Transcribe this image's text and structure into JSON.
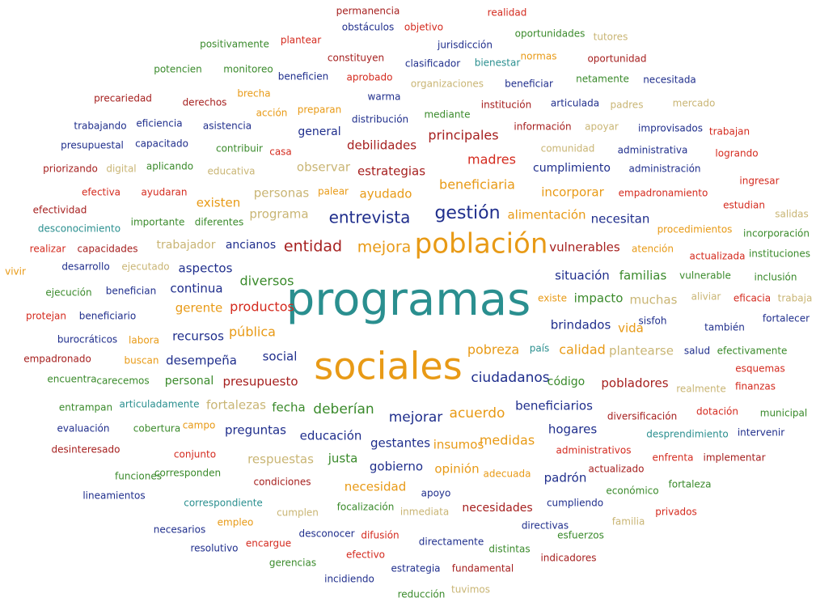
{
  "words": [
    {
      "text": "permanencia",
      "color": "#a6201f"
    },
    {
      "text": "realidad",
      "color": "#d42a1e"
    },
    {
      "text": "obstáculos",
      "color": "#1f2e8c"
    },
    {
      "text": "objetivo",
      "color": "#d42a1e"
    },
    {
      "text": "oportunidades",
      "color": "#3a8a2b"
    },
    {
      "text": "tutores",
      "color": "#c9b574"
    },
    {
      "text": "positivamente",
      "color": "#3a8a2b"
    },
    {
      "text": "plantear",
      "color": "#d42a1e"
    },
    {
      "text": "jurisdicción",
      "color": "#1f2e8c"
    },
    {
      "text": "constituyen",
      "color": "#a6201f"
    },
    {
      "text": "clasificador",
      "color": "#1f2e8c"
    },
    {
      "text": "bienestar",
      "color": "#2a8f8f"
    },
    {
      "text": "normas",
      "color": "#e89a16"
    },
    {
      "text": "oportunidad",
      "color": "#a6201f"
    },
    {
      "text": "potencien",
      "color": "#3a8a2b"
    },
    {
      "text": "monitoreo",
      "color": "#3a8a2b"
    },
    {
      "text": "beneficien",
      "color": "#1f2e8c"
    },
    {
      "text": "aprobado",
      "color": "#d42a1e"
    },
    {
      "text": "organizaciones",
      "color": "#c9b574"
    },
    {
      "text": "beneficiar",
      "color": "#1f2e8c"
    },
    {
      "text": "netamente",
      "color": "#3a8a2b"
    },
    {
      "text": "necesitada",
      "color": "#1f2e8c"
    },
    {
      "text": "brecha",
      "color": "#e89a16"
    },
    {
      "text": "warma",
      "color": "#1f2e8c"
    },
    {
      "text": "precariedad",
      "color": "#a6201f"
    },
    {
      "text": "derechos",
      "color": "#a6201f"
    },
    {
      "text": "padres",
      "color": "#c9b574"
    },
    {
      "text": "mercado",
      "color": "#c9b574"
    },
    {
      "text": "articulada",
      "color": "#1f2e8c"
    },
    {
      "text": "institución",
      "color": "#a6201f"
    },
    {
      "text": "acción",
      "color": "#e89a16"
    },
    {
      "text": "preparan",
      "color": "#e89a16"
    },
    {
      "text": "mediante",
      "color": "#3a8a2b"
    },
    {
      "text": "distribución",
      "color": "#1f2e8c"
    },
    {
      "text": "trabajando",
      "color": "#1f2e8c"
    },
    {
      "text": "eficiencia",
      "color": "#1f2e8c"
    },
    {
      "text": "asistencia",
      "color": "#1f2e8c"
    },
    {
      "text": "información",
      "color": "#a6201f"
    },
    {
      "text": "apoyar",
      "color": "#c9b574"
    },
    {
      "text": "improvisados",
      "color": "#1f2e8c"
    },
    {
      "text": "trabajan",
      "color": "#d42a1e"
    },
    {
      "text": "general",
      "color": "#1f2e8c"
    },
    {
      "text": "principales",
      "color": "#a6201f"
    },
    {
      "text": "presupuestal",
      "color": "#1f2e8c"
    },
    {
      "text": "capacitado",
      "color": "#1f2e8c"
    },
    {
      "text": "debilidades",
      "color": "#a6201f"
    },
    {
      "text": "contribuir",
      "color": "#3a8a2b"
    },
    {
      "text": "casa",
      "color": "#d42a1e"
    },
    {
      "text": "comunidad",
      "color": "#c9b574"
    },
    {
      "text": "administrativa",
      "color": "#1f2e8c"
    },
    {
      "text": "logrando",
      "color": "#d42a1e"
    },
    {
      "text": "madres",
      "color": "#d42a1e"
    },
    {
      "text": "priorizando",
      "color": "#a6201f"
    },
    {
      "text": "digital",
      "color": "#c9b574"
    },
    {
      "text": "aplicando",
      "color": "#3a8a2b"
    },
    {
      "text": "educativa",
      "color": "#c9b574"
    },
    {
      "text": "observar",
      "color": "#c9b574"
    },
    {
      "text": "estrategias",
      "color": "#a6201f"
    },
    {
      "text": "cumplimiento",
      "color": "#1f2e8c"
    },
    {
      "text": "administración",
      "color": "#1f2e8c"
    },
    {
      "text": "ingresar",
      "color": "#d42a1e"
    },
    {
      "text": "beneficiaria",
      "color": "#e89a16"
    },
    {
      "text": "efectiva",
      "color": "#d42a1e"
    },
    {
      "text": "ayudaran",
      "color": "#d42a1e"
    },
    {
      "text": "personas",
      "color": "#c9b574"
    },
    {
      "text": "palear",
      "color": "#e89a16"
    },
    {
      "text": "ayudado",
      "color": "#e89a16"
    },
    {
      "text": "incorporar",
      "color": "#e89a16"
    },
    {
      "text": "empadronamiento",
      "color": "#d42a1e"
    },
    {
      "text": "existen",
      "color": "#e89a16"
    },
    {
      "text": "estudian",
      "color": "#d42a1e"
    },
    {
      "text": "efectividad",
      "color": "#a6201f"
    },
    {
      "text": "programa",
      "color": "#c9b574"
    },
    {
      "text": "gestión",
      "color": "#1f2e8c"
    },
    {
      "text": "alimentación",
      "color": "#e89a16"
    },
    {
      "text": "necesitan",
      "color": "#1f2e8c"
    },
    {
      "text": "salidas",
      "color": "#c9b574"
    },
    {
      "text": "entrevista",
      "color": "#1f2e8c"
    },
    {
      "text": "importante",
      "color": "#3a8a2b"
    },
    {
      "text": "diferentes",
      "color": "#3a8a2b"
    },
    {
      "text": "desconocimiento",
      "color": "#2a8f8f"
    },
    {
      "text": "procedimientos",
      "color": "#e89a16"
    },
    {
      "text": "incorporación",
      "color": "#3a8a2b"
    },
    {
      "text": "trabajador",
      "color": "#c9b574"
    },
    {
      "text": "ancianos",
      "color": "#1f2e8c"
    },
    {
      "text": "entidad",
      "color": "#a6201f"
    },
    {
      "text": "mejora",
      "color": "#e89a16"
    },
    {
      "text": "población",
      "color": "#e89a16"
    },
    {
      "text": "vulnerables",
      "color": "#a6201f"
    },
    {
      "text": "atención",
      "color": "#e89a16"
    },
    {
      "text": "realizar",
      "color": "#d42a1e"
    },
    {
      "text": "capacidades",
      "color": "#a6201f"
    },
    {
      "text": "actualizada",
      "color": "#d42a1e"
    },
    {
      "text": "instituciones",
      "color": "#3a8a2b"
    },
    {
      "text": "vivir",
      "color": "#e89a16"
    },
    {
      "text": "desarrollo",
      "color": "#1f2e8c"
    },
    {
      "text": "ejecutado",
      "color": "#c9b574"
    },
    {
      "text": "aspectos",
      "color": "#1f2e8c"
    },
    {
      "text": "situación",
      "color": "#1f2e8c"
    },
    {
      "text": "familias",
      "color": "#3a8a2b"
    },
    {
      "text": "vulnerable",
      "color": "#3a8a2b"
    },
    {
      "text": "inclusión",
      "color": "#3a8a2b"
    },
    {
      "text": "diversos",
      "color": "#3a8a2b"
    },
    {
      "text": "continua",
      "color": "#1f2e8c"
    },
    {
      "text": "ejecución",
      "color": "#3a8a2b"
    },
    {
      "text": "benefician",
      "color": "#1f2e8c"
    },
    {
      "text": "programas",
      "color": "#2a8f8f"
    },
    {
      "text": "existe",
      "color": "#e89a16"
    },
    {
      "text": "impacto",
      "color": "#3a8a2b"
    },
    {
      "text": "muchas",
      "color": "#c9b574"
    },
    {
      "text": "aliviar",
      "color": "#c9b574"
    },
    {
      "text": "eficacia",
      "color": "#d42a1e"
    },
    {
      "text": "trabaja",
      "color": "#c9b574"
    },
    {
      "text": "gerente",
      "color": "#e89a16"
    },
    {
      "text": "productos",
      "color": "#d42a1e"
    },
    {
      "text": "protejan",
      "color": "#d42a1e"
    },
    {
      "text": "beneficiario",
      "color": "#1f2e8c"
    },
    {
      "text": "sisfoh",
      "color": "#1f2e8c"
    },
    {
      "text": "también",
      "color": "#1f2e8c"
    },
    {
      "text": "fortalecer",
      "color": "#1f2e8c"
    },
    {
      "text": "brindados",
      "color": "#1f2e8c"
    },
    {
      "text": "vida",
      "color": "#e89a16"
    },
    {
      "text": "recursos",
      "color": "#1f2e8c"
    },
    {
      "text": "pública",
      "color": "#e89a16"
    },
    {
      "text": "burocráticos",
      "color": "#1f2e8c"
    },
    {
      "text": "labora",
      "color": "#e89a16"
    },
    {
      "text": "país",
      "color": "#2a8f8f"
    },
    {
      "text": "calidad",
      "color": "#e89a16"
    },
    {
      "text": "plantearse",
      "color": "#c9b574"
    },
    {
      "text": "salud",
      "color": "#1f2e8c"
    },
    {
      "text": "efectivamente",
      "color": "#3a8a2b"
    },
    {
      "text": "pobreza",
      "color": "#e89a16"
    },
    {
      "text": "social",
      "color": "#1f2e8c"
    },
    {
      "text": "empadronado",
      "color": "#a6201f"
    },
    {
      "text": "buscan",
      "color": "#e89a16"
    },
    {
      "text": "desempeña",
      "color": "#1f2e8c"
    },
    {
      "text": "sociales",
      "color": "#e89a16"
    },
    {
      "text": "esquemas",
      "color": "#d42a1e"
    },
    {
      "text": "ciudadanos",
      "color": "#1f2e8c"
    },
    {
      "text": "encuentra",
      "color": "#3a8a2b"
    },
    {
      "text": "carecemos",
      "color": "#3a8a2b"
    },
    {
      "text": "personal",
      "color": "#3a8a2b"
    },
    {
      "text": "presupuesto",
      "color": "#a6201f"
    },
    {
      "text": "código",
      "color": "#3a8a2b"
    },
    {
      "text": "pobladores",
      "color": "#a6201f"
    },
    {
      "text": "realmente",
      "color": "#c9b574"
    },
    {
      "text": "finanzas",
      "color": "#d42a1e"
    },
    {
      "text": "entrampan",
      "color": "#3a8a2b"
    },
    {
      "text": "articuladamente",
      "color": "#2a8f8f"
    },
    {
      "text": "fortalezas",
      "color": "#c9b574"
    },
    {
      "text": "fecha",
      "color": "#3a8a2b"
    },
    {
      "text": "deberían",
      "color": "#3a8a2b"
    },
    {
      "text": "beneficiarios",
      "color": "#1f2e8c"
    },
    {
      "text": "dotación",
      "color": "#d42a1e"
    },
    {
      "text": "municipal",
      "color": "#3a8a2b"
    },
    {
      "text": "mejorar",
      "color": "#1f2e8c"
    },
    {
      "text": "acuerdo",
      "color": "#e89a16"
    },
    {
      "text": "diversificación",
      "color": "#a6201f"
    },
    {
      "text": "evaluación",
      "color": "#1f2e8c"
    },
    {
      "text": "cobertura",
      "color": "#3a8a2b"
    },
    {
      "text": "campo",
      "color": "#e89a16"
    },
    {
      "text": "preguntas",
      "color": "#1f2e8c"
    },
    {
      "text": "hogares",
      "color": "#1f2e8c"
    },
    {
      "text": "desprendimiento",
      "color": "#2a8f8f"
    },
    {
      "text": "intervenir",
      "color": "#1f2e8c"
    },
    {
      "text": "educación",
      "color": "#1f2e8c"
    },
    {
      "text": "gestantes",
      "color": "#1f2e8c"
    },
    {
      "text": "insumos",
      "color": "#e89a16"
    },
    {
      "text": "medidas",
      "color": "#e89a16"
    },
    {
      "text": "desinteresado",
      "color": "#a6201f"
    },
    {
      "text": "conjunto",
      "color": "#d42a1e"
    },
    {
      "text": "administrativos",
      "color": "#d42a1e"
    },
    {
      "text": "respuestas",
      "color": "#c9b574"
    },
    {
      "text": "justa",
      "color": "#3a8a2b"
    },
    {
      "text": "enfrenta",
      "color": "#d42a1e"
    },
    {
      "text": "implementar",
      "color": "#a6201f"
    },
    {
      "text": "gobierno",
      "color": "#1f2e8c"
    },
    {
      "text": "opinión",
      "color": "#e89a16"
    },
    {
      "text": "actualizado",
      "color": "#a6201f"
    },
    {
      "text": "adecuada",
      "color": "#e89a16"
    },
    {
      "text": "funciones",
      "color": "#3a8a2b"
    },
    {
      "text": "corresponden",
      "color": "#3a8a2b"
    },
    {
      "text": "padrón",
      "color": "#1f2e8c"
    },
    {
      "text": "condiciones",
      "color": "#a6201f"
    },
    {
      "text": "necesidad",
      "color": "#e89a16"
    },
    {
      "text": "fortaleza",
      "color": "#3a8a2b"
    },
    {
      "text": "económico",
      "color": "#3a8a2b"
    },
    {
      "text": "apoyo",
      "color": "#1f2e8c"
    },
    {
      "text": "lineamientos",
      "color": "#1f2e8c"
    },
    {
      "text": "correspondiente",
      "color": "#2a8f8f"
    },
    {
      "text": "cumpliendo",
      "color": "#1f2e8c"
    },
    {
      "text": "focalización",
      "color": "#3a8a2b"
    },
    {
      "text": "inmediata",
      "color": "#c9b574"
    },
    {
      "text": "necesidades",
      "color": "#a6201f"
    },
    {
      "text": "cumplen",
      "color": "#c9b574"
    },
    {
      "text": "privados",
      "color": "#d42a1e"
    },
    {
      "text": "empleo",
      "color": "#e89a16"
    },
    {
      "text": "familia",
      "color": "#c9b574"
    },
    {
      "text": "directivas",
      "color": "#1f2e8c"
    },
    {
      "text": "necesarios",
      "color": "#1f2e8c"
    },
    {
      "text": "difusión",
      "color": "#d42a1e"
    },
    {
      "text": "desconocer",
      "color": "#1f2e8c"
    },
    {
      "text": "encargue",
      "color": "#d42a1e"
    },
    {
      "text": "esfuerzos",
      "color": "#3a8a2b"
    },
    {
      "text": "directamente",
      "color": "#1f2e8c"
    },
    {
      "text": "resolutivo",
      "color": "#1f2e8c"
    },
    {
      "text": "distintas",
      "color": "#3a8a2b"
    },
    {
      "text": "efectivo",
      "color": "#d42a1e"
    },
    {
      "text": "indicadores",
      "color": "#a6201f"
    },
    {
      "text": "gerencias",
      "color": "#3a8a2b"
    },
    {
      "text": "estrategia",
      "color": "#1f2e8c"
    },
    {
      "text": "fundamental",
      "color": "#a6201f"
    },
    {
      "text": "incidiendo",
      "color": "#1f2e8c"
    },
    {
      "text": "tuvimos",
      "color": "#c9b574"
    },
    {
      "text": "reducción",
      "color": "#3a8a2b"
    }
  ]
}
